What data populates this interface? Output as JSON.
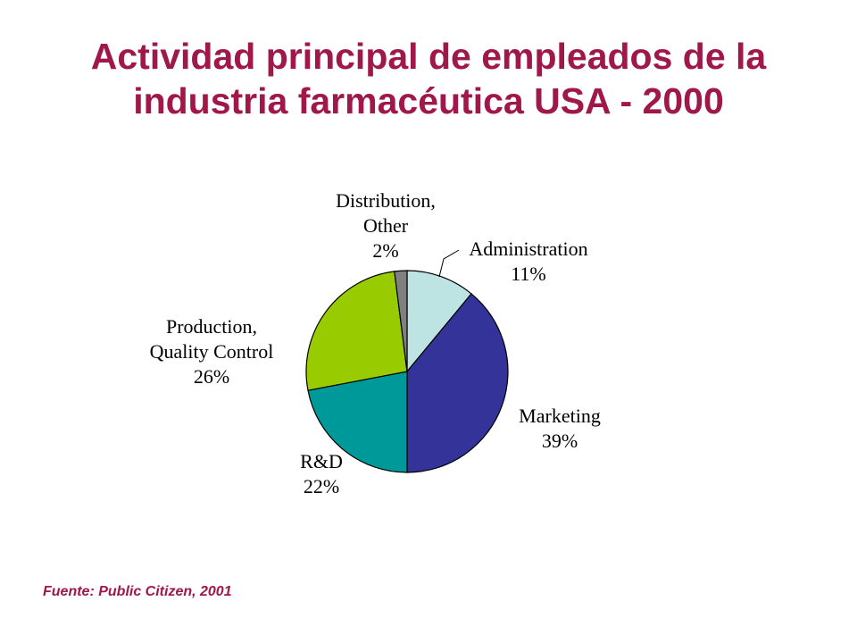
{
  "title": {
    "line1": "Actividad principal de empleados de la",
    "line2": "industria farmacéutica USA - 2000"
  },
  "source": "Fuente: Public Citizen, 2001",
  "chart_data": {
    "type": "pie",
    "slices": [
      {
        "label_lines": [
          "Administration"
        ],
        "value": 11,
        "value_label": "11%",
        "color": "#bde3e3"
      },
      {
        "label_lines": [
          "Marketing"
        ],
        "value": 39,
        "value_label": "39%",
        "color": "#333399"
      },
      {
        "label_lines": [
          "R&D"
        ],
        "value": 22,
        "value_label": "22%",
        "color": "#009999"
      },
      {
        "label_lines": [
          "Production,",
          "Quality Control"
        ],
        "value": 26,
        "value_label": "26%",
        "color": "#99cc00"
      },
      {
        "label_lines": [
          "Distribution,",
          "Other"
        ],
        "value": 2,
        "value_label": "2%",
        "color": "#808080"
      }
    ],
    "start": "12 o'clock",
    "direction": "clockwise",
    "legend": "none"
  }
}
